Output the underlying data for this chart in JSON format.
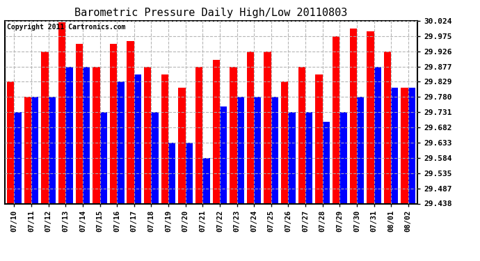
{
  "title": "Barometric Pressure Daily High/Low 20110803",
  "copyright": "Copyright 2011 Cartronics.com",
  "dates": [
    "07/10",
    "07/11",
    "07/12",
    "07/13",
    "07/14",
    "07/15",
    "07/16",
    "07/17",
    "07/18",
    "07/19",
    "07/20",
    "07/21",
    "07/22",
    "07/23",
    "07/24",
    "07/25",
    "07/26",
    "07/27",
    "07/28",
    "07/29",
    "07/30",
    "07/31",
    "08/01",
    "08/02"
  ],
  "highs": [
    29.83,
    29.78,
    29.926,
    30.02,
    29.95,
    29.877,
    29.95,
    29.96,
    29.877,
    29.853,
    29.81,
    29.877,
    29.9,
    29.877,
    29.926,
    29.926,
    29.83,
    29.877,
    29.853,
    29.975,
    30.0,
    29.99,
    29.926,
    29.81
  ],
  "lows": [
    29.731,
    29.78,
    29.78,
    29.877,
    29.877,
    29.731,
    29.829,
    29.853,
    29.731,
    29.633,
    29.633,
    29.584,
    29.75,
    29.78,
    29.78,
    29.78,
    29.731,
    29.731,
    29.7,
    29.731,
    29.78,
    29.877,
    29.81,
    29.81
  ],
  "ylim_min": 29.438,
  "ylim_max": 30.024,
  "yticks": [
    29.438,
    29.487,
    29.535,
    29.584,
    29.633,
    29.682,
    29.731,
    29.78,
    29.829,
    29.877,
    29.926,
    29.975,
    30.024
  ],
  "bg_color": "#ffffff",
  "high_color": "#ff0000",
  "low_color": "#0000ff",
  "grid_color": "#b0b0b0",
  "title_fontsize": 11,
  "copyright_fontsize": 7,
  "bar_width": 0.42
}
